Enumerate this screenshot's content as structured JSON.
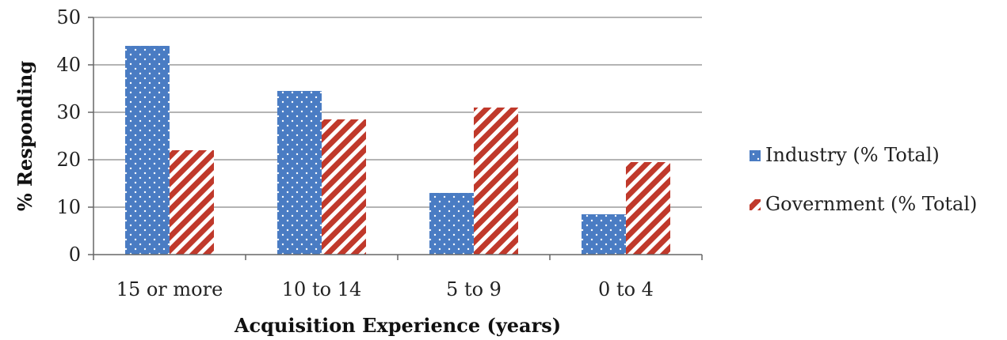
{
  "chart_data": {
    "type": "bar",
    "title": "",
    "xlabel": "Acquisition Experience (years)",
    "ylabel": "% Responding",
    "categories": [
      "15 or more",
      "10 to 14",
      "5 to 9",
      "0 to 4"
    ],
    "ylim": [
      0,
      50
    ],
    "yticks": [
      "0",
      "10",
      "20",
      "30",
      "40",
      "50"
    ],
    "grid": true,
    "legend_position": "right",
    "series": [
      {
        "name": "Industry (% Total)",
        "values": [
          44,
          34.5,
          13,
          8.5
        ],
        "color": "#4a7cc3",
        "pattern": "dots"
      },
      {
        "name": "Government (% Total)",
        "values": [
          22,
          28.5,
          31,
          19.5
        ],
        "color": "#c0392b",
        "pattern": "stripes"
      }
    ]
  }
}
